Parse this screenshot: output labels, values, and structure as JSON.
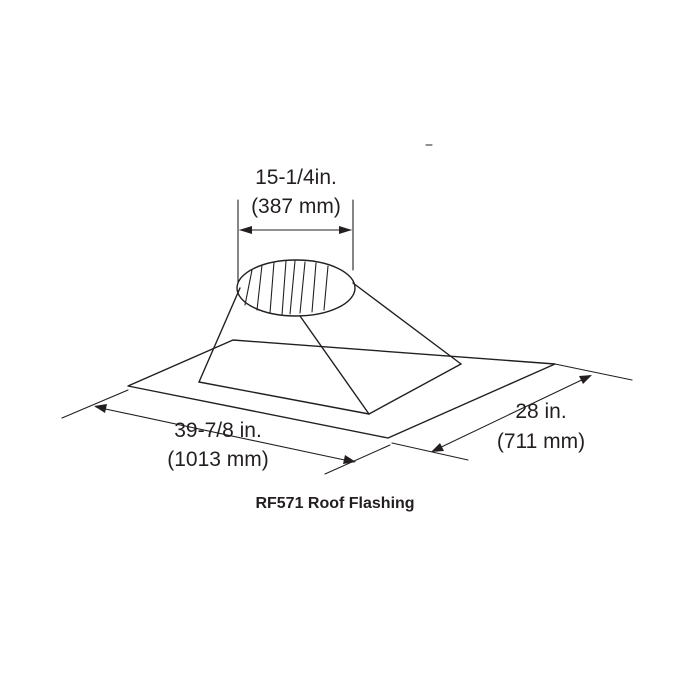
{
  "dimensions": {
    "top_width_in": "15-1/4in.",
    "top_width_mm": "(387 mm)",
    "length_in": "39-7/8 in.",
    "length_mm": "(1013 mm)",
    "width_in": "28 in.",
    "width_mm": "(711 mm)"
  },
  "caption": "RF571 Roof Flashing"
}
